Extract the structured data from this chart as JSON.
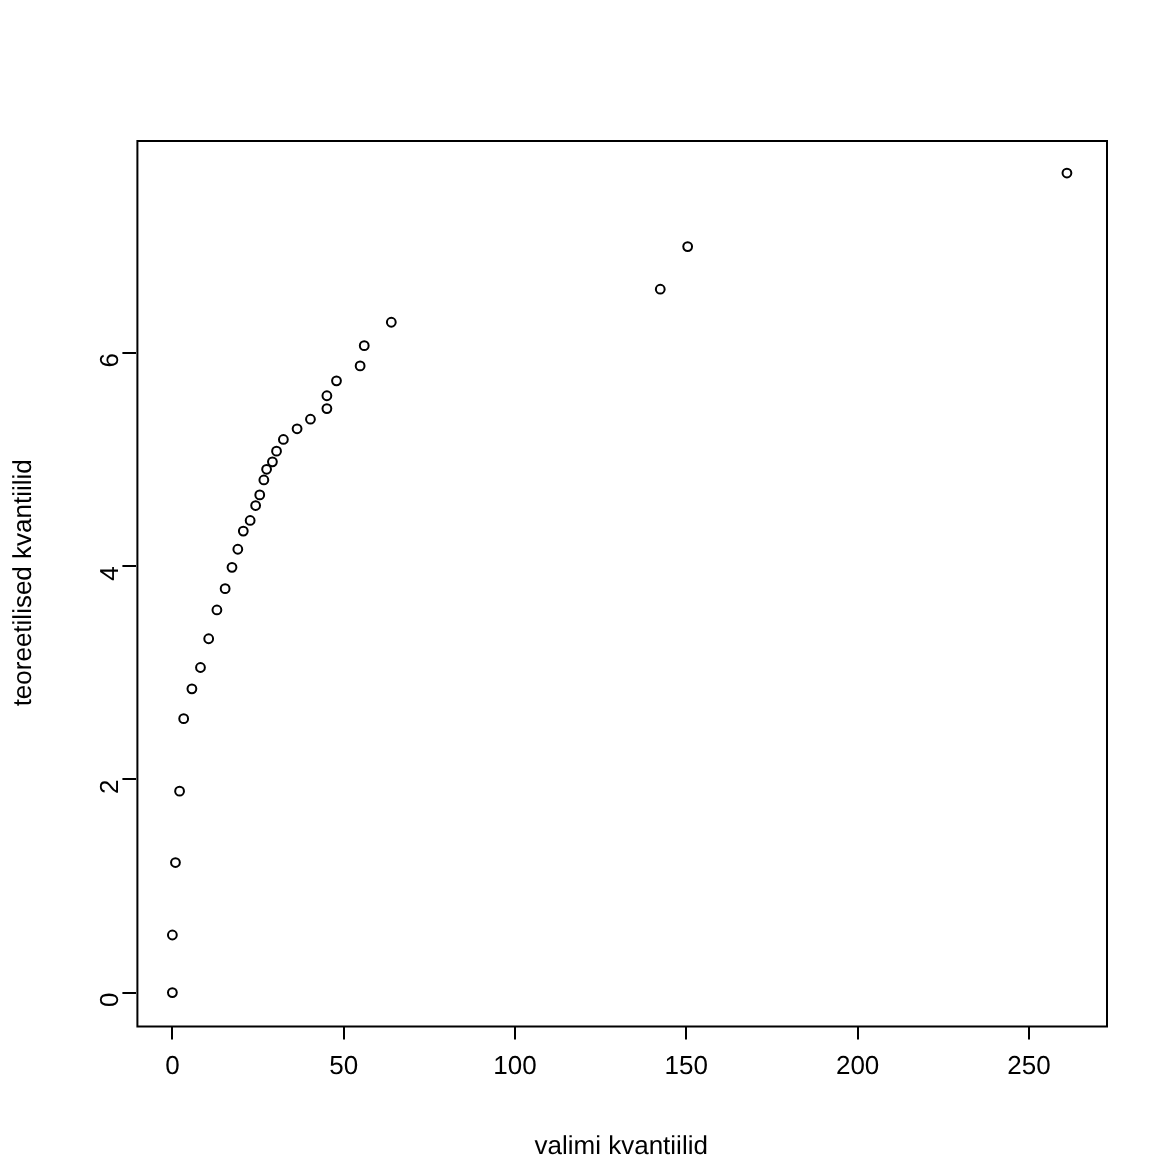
{
  "chart_data": {
    "type": "scatter",
    "xlabel": "valimi kvantiilid",
    "ylabel": "teoreetilised kvantiilid",
    "x": [
      0,
      0,
      0.9,
      2.1,
      3.3,
      5.7,
      8.2,
      10.6,
      13,
      15.4,
      17.4,
      19.1,
      20.7,
      22.7,
      24.3,
      25.5,
      26.7,
      27.5,
      29.2,
      30.4,
      32.4,
      36.4,
      40.3,
      45.1,
      45.1,
      47.9,
      54.8,
      56,
      63.9,
      142.4,
      150.4,
      261.1
    ],
    "series": [
      {
        "color": "#000000",
        "values": [
          0,
          0.54,
          1.22,
          1.89,
          2.57,
          2.85,
          3.05,
          3.32,
          3.59,
          3.79,
          3.99,
          4.16,
          4.33,
          4.43,
          4.57,
          4.67,
          4.81,
          4.91,
          4.98,
          5.08,
          5.19,
          5.29,
          5.38,
          5.48,
          5.6,
          5.74,
          5.88,
          6.07,
          6.29,
          6.6,
          7.0,
          7.69
        ]
      }
    ],
    "xlim": [
      -10.5,
      272.5
    ],
    "ylim": [
      -0.31,
      8.0
    ],
    "xticks": [
      0,
      50,
      100,
      150,
      200,
      250
    ],
    "yticks": [
      0,
      2,
      4,
      6
    ],
    "grid": false,
    "legend": false,
    "marker": "circle"
  }
}
